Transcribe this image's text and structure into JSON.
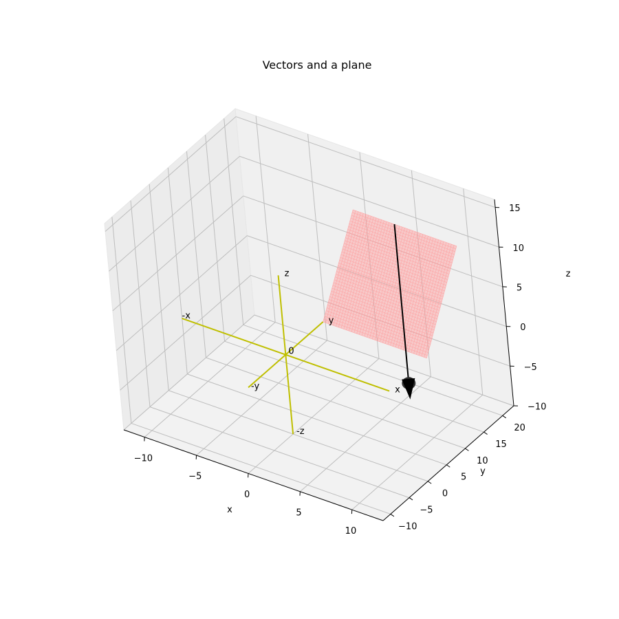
{
  "chart_data": {
    "type": "3d-line",
    "title": "Vectors and a plane",
    "xlabel": "x",
    "ylabel": "y",
    "zlabel": "z",
    "xlim": [
      -12,
      13
    ],
    "ylim": [
      -12,
      23
    ],
    "zlim": [
      -10,
      16
    ],
    "xticks": [
      -10,
      -5,
      0,
      5,
      10
    ],
    "yticks": [
      -10,
      -5,
      0,
      5,
      10,
      15,
      20
    ],
    "zticks": [
      -10,
      -5,
      0,
      5,
      10,
      15
    ],
    "grid": true,
    "axis_lines": {
      "color": "#bfbf00",
      "extent": 10,
      "labels": {
        "pos_x": "x",
        "neg_x": "-x",
        "pos_y": "y",
        "neg_y": "-y",
        "pos_z": "z",
        "neg_z": "-z",
        "origin": "0"
      }
    },
    "vector": {
      "color": "#000000",
      "start": [
        4,
        20,
        10
      ],
      "end": [
        12,
        0,
        0
      ]
    },
    "plane": {
      "color": "#ff9999",
      "corners": [
        [
          0,
          20,
          10
        ],
        [
          10,
          20,
          10
        ],
        [
          10,
          10,
          0
        ],
        [
          0,
          10,
          0
        ]
      ]
    }
  }
}
